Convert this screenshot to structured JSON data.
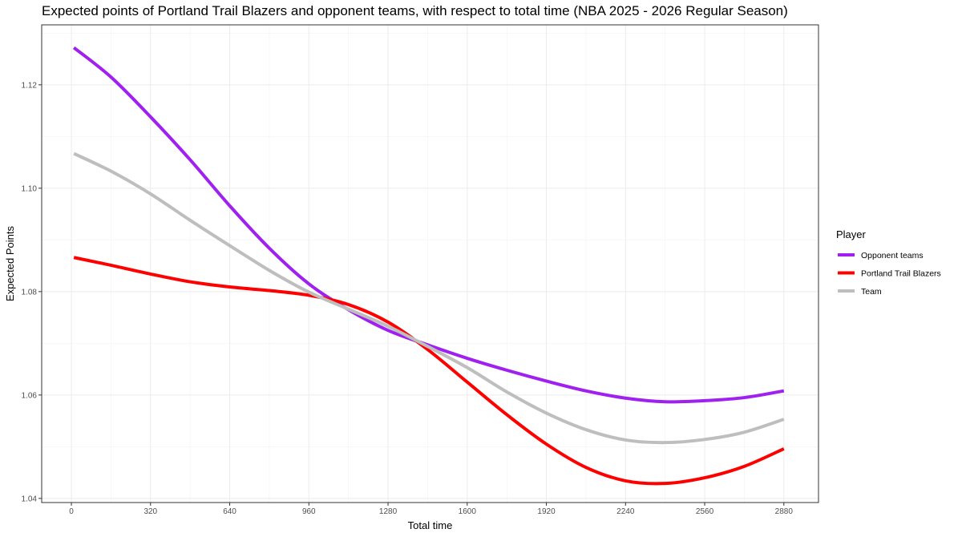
{
  "chart_data": {
    "type": "line",
    "title": "Expected points of Portland Trail Blazers and opponent teams, with respect to total time (NBA 2025 - 2026 Regular Season)",
    "xlabel": "Total time",
    "ylabel": "Expected Points",
    "xlim": [
      -120,
      3020
    ],
    "ylim": [
      1.0392,
      1.1316
    ],
    "x_ticks": [
      0,
      320,
      640,
      960,
      1280,
      1600,
      1920,
      2240,
      2560,
      2880
    ],
    "y_ticks": [
      1.04,
      1.06,
      1.08,
      1.1,
      1.12
    ],
    "y_tick_labels": [
      "1.04",
      "1.06",
      "1.08",
      "1.10",
      "1.12"
    ],
    "grid": true,
    "legend": {
      "title": "Player",
      "position": "right"
    },
    "series": [
      {
        "name": "Opponent teams",
        "color": "#a020f0",
        "x": [
          10,
          160,
          320,
          480,
          640,
          800,
          960,
          1120,
          1280,
          1440,
          1600,
          1760,
          1920,
          2080,
          2240,
          2400,
          2560,
          2720,
          2880
        ],
        "y": [
          1.1272,
          1.1215,
          1.1138,
          1.1055,
          1.0966,
          1.0884,
          1.0815,
          1.0765,
          1.0725,
          1.0697,
          1.0671,
          1.0648,
          1.0627,
          1.0608,
          1.0594,
          1.0587,
          1.0589,
          1.0595,
          1.0608
        ]
      },
      {
        "name": "Portland Trail Blazers",
        "color": "#ff0000",
        "x": [
          10,
          160,
          320,
          480,
          640,
          800,
          960,
          1120,
          1280,
          1440,
          1600,
          1760,
          1920,
          2080,
          2240,
          2400,
          2560,
          2720,
          2880
        ],
        "y": [
          1.0866,
          1.0851,
          1.0834,
          1.0819,
          1.0809,
          1.0802,
          1.0793,
          1.0775,
          1.0741,
          1.0688,
          1.0625,
          1.0562,
          1.0505,
          1.046,
          1.0434,
          1.0429,
          1.044,
          1.0462,
          1.0496
        ]
      },
      {
        "name": "Team",
        "color": "#bebebe",
        "x": [
          10,
          160,
          320,
          480,
          640,
          800,
          960,
          1120,
          1280,
          1440,
          1600,
          1760,
          1920,
          2080,
          2240,
          2400,
          2560,
          2720,
          2880
        ],
        "y": [
          1.1067,
          1.1033,
          1.0989,
          1.0938,
          1.0889,
          1.0841,
          1.0799,
          1.0766,
          1.0733,
          1.0694,
          1.0653,
          1.0606,
          1.0565,
          1.0533,
          1.0513,
          1.0508,
          1.0514,
          1.0528,
          1.0553
        ]
      }
    ]
  }
}
